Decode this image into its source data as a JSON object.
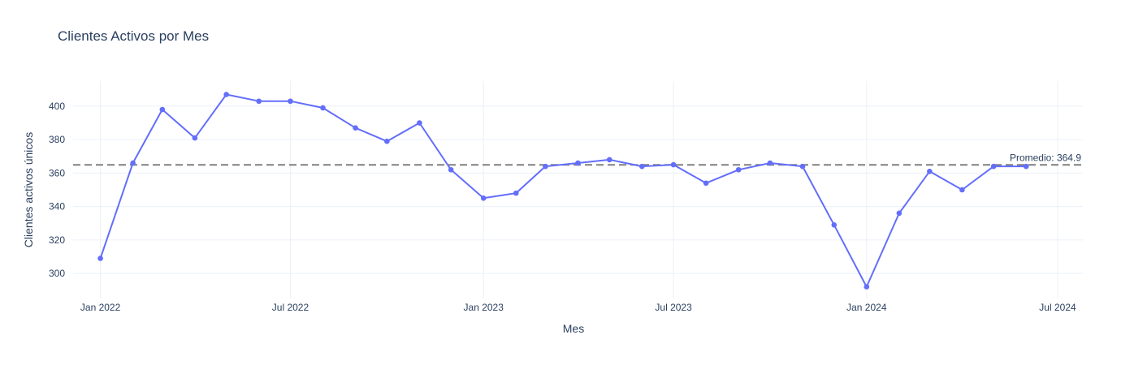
{
  "chart_data": {
    "type": "line",
    "title": "Clientes Activos por Mes",
    "xlabel": "Mes",
    "ylabel": "Clientes activos únicos",
    "x_ticks": [
      "2022-01-01",
      "2022-07-01",
      "2023-01-01",
      "2023-07-01",
      "2024-01-01",
      "2024-07-01"
    ],
    "x_tick_labels": [
      "Jan 2022",
      "Jul 2022",
      "Jan 2023",
      "Jul 2023",
      "Jan 2024",
      "Jul 2024"
    ],
    "y_ticks": [
      300,
      320,
      340,
      360,
      380,
      400
    ],
    "xlim": [
      "2021-12-06",
      "2024-07-25"
    ],
    "ylim": [
      285,
      415
    ],
    "grid": true,
    "colors": {
      "line": "#636efa",
      "reference": "#808080"
    },
    "reference_line": {
      "value": 364.9,
      "label": "Promedio: 364.9",
      "style": "dashed"
    },
    "series": [
      {
        "x": [
          "2022-01-01",
          "2022-02-01",
          "2022-03-01",
          "2022-04-01",
          "2022-05-01",
          "2022-06-01",
          "2022-07-01",
          "2022-08-01",
          "2022-09-01",
          "2022-10-01",
          "2022-11-01",
          "2022-12-01",
          "2023-01-01",
          "2023-02-01",
          "2023-03-01",
          "2023-04-01",
          "2023-05-01",
          "2023-06-01",
          "2023-07-01",
          "2023-08-01",
          "2023-09-01",
          "2023-10-01",
          "2023-11-01",
          "2023-12-01",
          "2024-01-01",
          "2024-02-01",
          "2024-03-01",
          "2024-04-01",
          "2024-05-01",
          "2024-06-01"
        ],
        "values": [
          309,
          366,
          398,
          381,
          407,
          403,
          403,
          399,
          387,
          379,
          390,
          362,
          345,
          348,
          364,
          366,
          368,
          364,
          365,
          354,
          362,
          366,
          364,
          329,
          292,
          336,
          361,
          350,
          364,
          364
        ]
      }
    ]
  }
}
